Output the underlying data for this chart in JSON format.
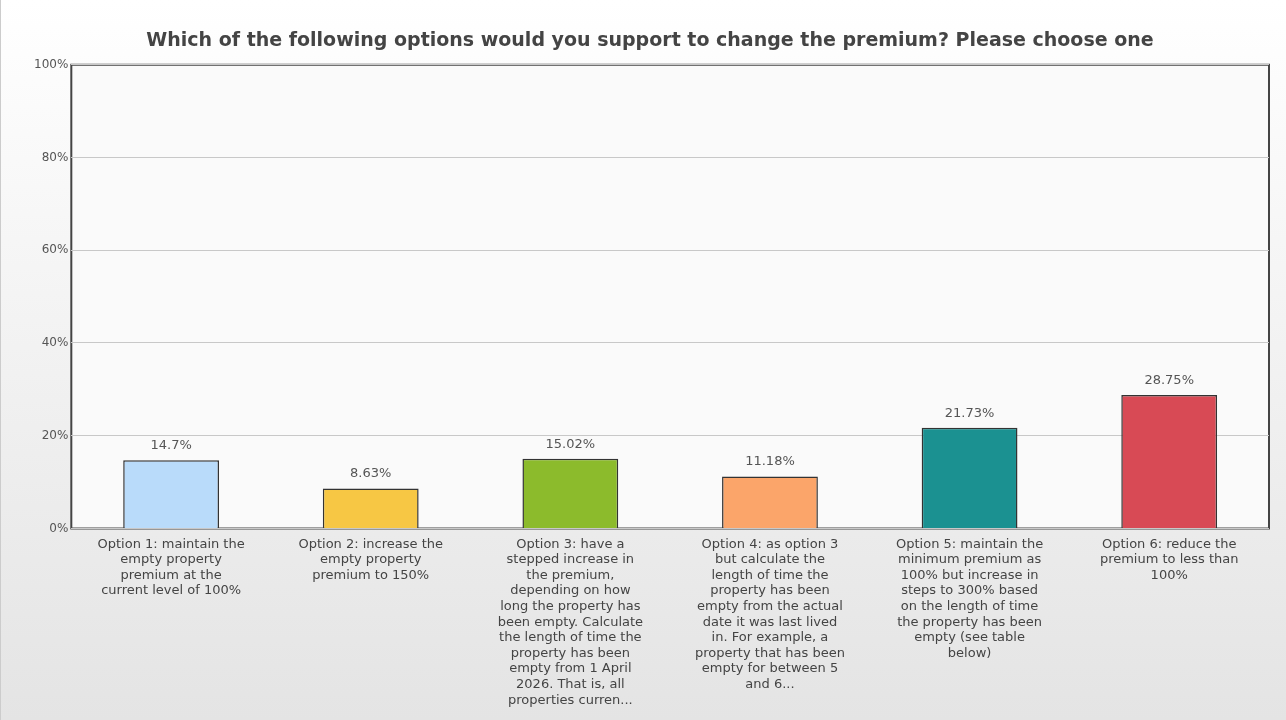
{
  "chart_data": {
    "type": "bar",
    "title": "Which of the following options would you support to change the premium? Please choose one",
    "categories": [
      "Option 1: maintain the empty property premium at the current level of 100%",
      "Option 2: increase the empty property premium to 150%",
      "Option 3: have a stepped increase in the premium, depending on how long the property has been empty. Calculate the length of time the property has been empty from 1 April 2026. That is, all properties curren...",
      "Option 4: as option 3 but calculate the length of time the property has been empty from the actual date it was last lived in. For example, a property that has been empty for between 5 and 6...",
      "Option 5: maintain the minimum premium as 100% but increase in steps to 300% based on the length of time the property has been empty (see table below)",
      "Option 6: reduce the premium to less than 100%"
    ],
    "values": [
      14.7,
      8.63,
      15.02,
      11.18,
      21.73,
      28.75
    ],
    "colors": [
      "#b9dbfa",
      "#f7c744",
      "#8cbb2c",
      "#fba56a",
      "#1b9191",
      "#d84a55"
    ],
    "value_labels": [
      "14.7%",
      "8.63%",
      "15.02%",
      "11.18%",
      "21.73%",
      "28.75%"
    ],
    "ylim": [
      0,
      100
    ],
    "yticks": [
      {
        "value": 0,
        "label": "0%"
      },
      {
        "value": 20,
        "label": "20%"
      },
      {
        "value": 40,
        "label": "40%"
      },
      {
        "value": 60,
        "label": "60%"
      },
      {
        "value": 80,
        "label": "80%"
      },
      {
        "value": 100,
        "label": "100%"
      }
    ],
    "grid": "y",
    "legend": false
  }
}
